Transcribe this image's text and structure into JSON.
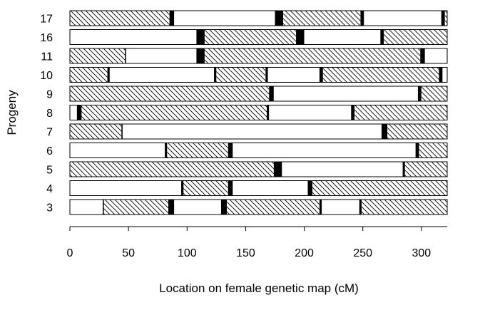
{
  "chart_data": {
    "type": "bar",
    "orientation": "horizontal",
    "xlabel": "Location on female genetic map (cM)",
    "ylabel": "Progeny",
    "xlim": [
      0,
      322
    ],
    "xticks": [
      0,
      50,
      100,
      150,
      200,
      250,
      300
    ],
    "grid": false,
    "segment_fills": {
      "hatched": "diagonal-hatch",
      "white": "blank",
      "black": "solid-black"
    },
    "colors": {
      "stroke": "#000000",
      "background": "#ffffff"
    },
    "rows": [
      {
        "label": "17",
        "segments": [
          {
            "start": 0,
            "end": 85,
            "fill": "hatched"
          },
          {
            "start": 85,
            "end": 89,
            "fill": "black"
          },
          {
            "start": 89,
            "end": 175,
            "fill": "white"
          },
          {
            "start": 175,
            "end": 182,
            "fill": "black"
          },
          {
            "start": 182,
            "end": 248,
            "fill": "hatched"
          },
          {
            "start": 248,
            "end": 251,
            "fill": "black"
          },
          {
            "start": 251,
            "end": 317,
            "fill": "white"
          },
          {
            "start": 317,
            "end": 320,
            "fill": "black"
          },
          {
            "start": 320,
            "end": 322,
            "fill": "hatched"
          }
        ]
      },
      {
        "label": "16",
        "segments": [
          {
            "start": 0,
            "end": 108,
            "fill": "white"
          },
          {
            "start": 108,
            "end": 115,
            "fill": "black"
          },
          {
            "start": 115,
            "end": 193,
            "fill": "hatched"
          },
          {
            "start": 193,
            "end": 200,
            "fill": "black"
          },
          {
            "start": 200,
            "end": 265,
            "fill": "white"
          },
          {
            "start": 265,
            "end": 268,
            "fill": "black"
          },
          {
            "start": 268,
            "end": 322,
            "fill": "hatched"
          }
        ]
      },
      {
        "label": "11",
        "segments": [
          {
            "start": 0,
            "end": 47,
            "fill": "hatched"
          },
          {
            "start": 47,
            "end": 48,
            "fill": "black"
          },
          {
            "start": 48,
            "end": 108,
            "fill": "white"
          },
          {
            "start": 108,
            "end": 115,
            "fill": "black"
          },
          {
            "start": 115,
            "end": 299,
            "fill": "hatched"
          },
          {
            "start": 299,
            "end": 303,
            "fill": "black"
          },
          {
            "start": 303,
            "end": 322,
            "fill": "white"
          }
        ]
      },
      {
        "label": "10",
        "segments": [
          {
            "start": 0,
            "end": 32,
            "fill": "hatched"
          },
          {
            "start": 32,
            "end": 34,
            "fill": "black"
          },
          {
            "start": 34,
            "end": 123,
            "fill": "white"
          },
          {
            "start": 123,
            "end": 125,
            "fill": "black"
          },
          {
            "start": 125,
            "end": 167,
            "fill": "hatched"
          },
          {
            "start": 167,
            "end": 169,
            "fill": "black"
          },
          {
            "start": 169,
            "end": 213,
            "fill": "white"
          },
          {
            "start": 213,
            "end": 216,
            "fill": "black"
          },
          {
            "start": 216,
            "end": 315,
            "fill": "hatched"
          },
          {
            "start": 315,
            "end": 318,
            "fill": "black"
          },
          {
            "start": 318,
            "end": 322,
            "fill": "white"
          }
        ]
      },
      {
        "label": "9",
        "segments": [
          {
            "start": 0,
            "end": 170,
            "fill": "hatched"
          },
          {
            "start": 170,
            "end": 174,
            "fill": "black"
          },
          {
            "start": 174,
            "end": 297,
            "fill": "white"
          },
          {
            "start": 297,
            "end": 300,
            "fill": "black"
          },
          {
            "start": 300,
            "end": 322,
            "fill": "hatched"
          }
        ]
      },
      {
        "label": "8",
        "segments": [
          {
            "start": 0,
            "end": 6,
            "fill": "white"
          },
          {
            "start": 6,
            "end": 10,
            "fill": "black"
          },
          {
            "start": 10,
            "end": 168,
            "fill": "hatched"
          },
          {
            "start": 168,
            "end": 170,
            "fill": "black"
          },
          {
            "start": 170,
            "end": 240,
            "fill": "white"
          },
          {
            "start": 240,
            "end": 243,
            "fill": "black"
          },
          {
            "start": 243,
            "end": 322,
            "fill": "hatched"
          }
        ]
      },
      {
        "label": "7",
        "segments": [
          {
            "start": 0,
            "end": 44,
            "fill": "hatched"
          },
          {
            "start": 44,
            "end": 45,
            "fill": "black"
          },
          {
            "start": 45,
            "end": 266,
            "fill": "white"
          },
          {
            "start": 266,
            "end": 271,
            "fill": "black"
          },
          {
            "start": 271,
            "end": 322,
            "fill": "hatched"
          }
        ]
      },
      {
        "label": "6",
        "segments": [
          {
            "start": 0,
            "end": 81,
            "fill": "white"
          },
          {
            "start": 81,
            "end": 83,
            "fill": "black"
          },
          {
            "start": 83,
            "end": 135,
            "fill": "hatched"
          },
          {
            "start": 135,
            "end": 139,
            "fill": "black"
          },
          {
            "start": 139,
            "end": 295,
            "fill": "white"
          },
          {
            "start": 295,
            "end": 298,
            "fill": "black"
          },
          {
            "start": 298,
            "end": 322,
            "fill": "hatched"
          }
        ]
      },
      {
        "label": "5",
        "segments": [
          {
            "start": 0,
            "end": 174,
            "fill": "hatched"
          },
          {
            "start": 174,
            "end": 181,
            "fill": "black"
          },
          {
            "start": 181,
            "end": 284,
            "fill": "white"
          },
          {
            "start": 284,
            "end": 286,
            "fill": "black"
          },
          {
            "start": 286,
            "end": 322,
            "fill": "hatched"
          }
        ]
      },
      {
        "label": "4",
        "segments": [
          {
            "start": 0,
            "end": 95,
            "fill": "white"
          },
          {
            "start": 95,
            "end": 97,
            "fill": "black"
          },
          {
            "start": 97,
            "end": 135,
            "fill": "hatched"
          },
          {
            "start": 135,
            "end": 139,
            "fill": "black"
          },
          {
            "start": 139,
            "end": 203,
            "fill": "white"
          },
          {
            "start": 203,
            "end": 207,
            "fill": "black"
          },
          {
            "start": 207,
            "end": 322,
            "fill": "hatched"
          }
        ]
      },
      {
        "label": "3",
        "segments": [
          {
            "start": 0,
            "end": 28,
            "fill": "white"
          },
          {
            "start": 28,
            "end": 29,
            "fill": "black"
          },
          {
            "start": 29,
            "end": 84,
            "fill": "hatched"
          },
          {
            "start": 84,
            "end": 89,
            "fill": "black"
          },
          {
            "start": 89,
            "end": 129,
            "fill": "white"
          },
          {
            "start": 129,
            "end": 134,
            "fill": "black"
          },
          {
            "start": 134,
            "end": 213,
            "fill": "hatched"
          },
          {
            "start": 213,
            "end": 215,
            "fill": "black"
          },
          {
            "start": 215,
            "end": 247,
            "fill": "white"
          },
          {
            "start": 247,
            "end": 249,
            "fill": "black"
          },
          {
            "start": 249,
            "end": 322,
            "fill": "hatched"
          }
        ]
      }
    ]
  }
}
